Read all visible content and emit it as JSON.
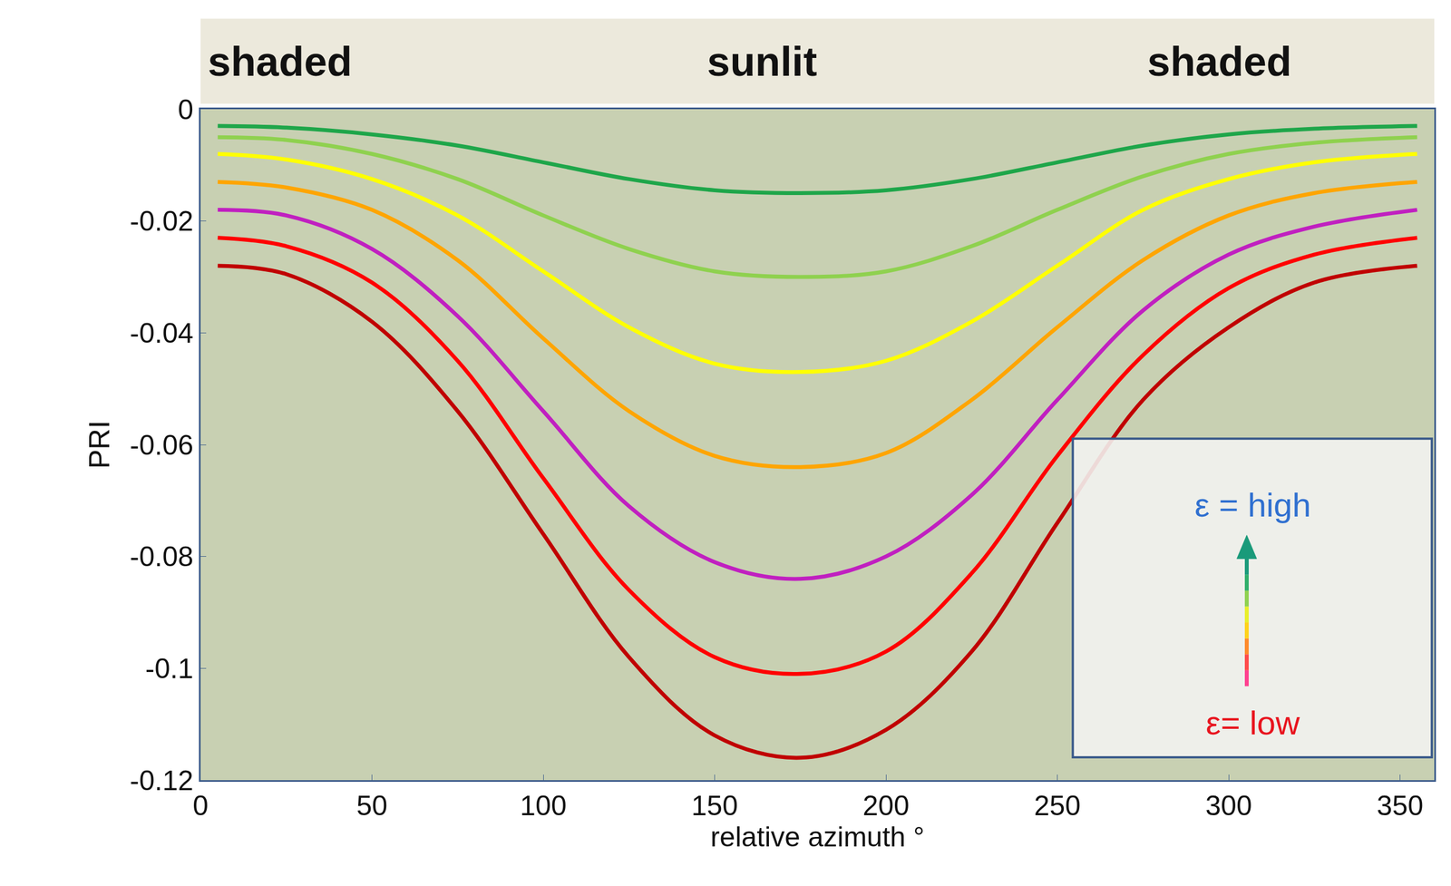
{
  "chart_data": {
    "type": "line",
    "x_label": "relative azimuth °",
    "y_label": "PRI",
    "x": [
      5,
      25,
      50,
      75,
      100,
      125,
      150,
      175,
      200,
      225,
      250,
      275,
      300,
      325,
      355
    ],
    "series": [
      {
        "color": "#1fa64a",
        "values": [
          -0.003,
          -0.0033,
          -0.0045,
          -0.0065,
          -0.0095,
          -0.0125,
          -0.0145,
          -0.015,
          -0.0145,
          -0.0125,
          -0.0095,
          -0.0065,
          -0.0045,
          -0.0035,
          -0.003
        ]
      },
      {
        "color": "#8fd14f",
        "values": [
          -0.005,
          -0.0055,
          -0.008,
          -0.0125,
          -0.019,
          -0.025,
          -0.029,
          -0.03,
          -0.029,
          -0.0245,
          -0.018,
          -0.012,
          -0.008,
          -0.006,
          -0.005
        ]
      },
      {
        "color": "#ffff00",
        "values": [
          -0.008,
          -0.009,
          -0.0125,
          -0.019,
          -0.029,
          -0.039,
          -0.0455,
          -0.047,
          -0.045,
          -0.038,
          -0.028,
          -0.018,
          -0.0125,
          -0.0095,
          -0.008
        ]
      },
      {
        "color": "#ffa500",
        "values": [
          -0.013,
          -0.014,
          -0.018,
          -0.027,
          -0.041,
          -0.054,
          -0.062,
          -0.064,
          -0.0615,
          -0.052,
          -0.039,
          -0.027,
          -0.019,
          -0.015,
          -0.013
        ]
      },
      {
        "color": "#c020c0",
        "values": [
          -0.018,
          -0.019,
          -0.025,
          -0.037,
          -0.054,
          -0.071,
          -0.081,
          -0.084,
          -0.08,
          -0.069,
          -0.052,
          -0.036,
          -0.026,
          -0.021,
          -0.018
        ]
      },
      {
        "color": "#ff0000",
        "values": [
          -0.023,
          -0.0245,
          -0.031,
          -0.045,
          -0.066,
          -0.086,
          -0.098,
          -0.101,
          -0.097,
          -0.083,
          -0.062,
          -0.044,
          -0.032,
          -0.026,
          -0.023
        ]
      },
      {
        "color": "#c00000",
        "values": [
          -0.028,
          -0.0295,
          -0.038,
          -0.054,
          -0.076,
          -0.098,
          -0.112,
          -0.116,
          -0.111,
          -0.097,
          -0.074,
          -0.052,
          -0.039,
          -0.031,
          -0.028
        ]
      }
    ],
    "xlim": [
      0,
      360
    ],
    "xticks": [
      0,
      50,
      100,
      150,
      200,
      250,
      300,
      350
    ],
    "ylim": [
      -0.12,
      0
    ],
    "yticks": [
      -0.12,
      -0.1,
      -0.08,
      -0.06,
      -0.04,
      -0.02,
      0
    ],
    "grid": false,
    "band_labels": [
      "shaded",
      "sunlit",
      "shaded"
    ],
    "annotations": [
      "ε = high",
      "ε= low"
    ]
  }
}
